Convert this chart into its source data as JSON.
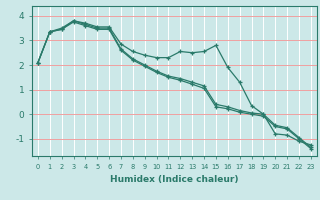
{
  "xlabel": "Humidex (Indice chaleur)",
  "ylabel": "",
  "bg_color": "#cce8e8",
  "grid_color_h": "#f0a0a0",
  "grid_color_v": "#ffffff",
  "line_color": "#2a7a6a",
  "xlim": [
    -0.5,
    23.5
  ],
  "ylim": [
    -1.7,
    4.4
  ],
  "yticks": [
    -1,
    0,
    1,
    2,
    3,
    4
  ],
  "xticks": [
    0,
    1,
    2,
    3,
    4,
    5,
    6,
    7,
    8,
    9,
    10,
    11,
    12,
    13,
    14,
    15,
    16,
    17,
    18,
    19,
    20,
    21,
    22,
    23
  ],
  "x": [
    0,
    1,
    2,
    3,
    4,
    5,
    6,
    7,
    8,
    9,
    10,
    11,
    12,
    13,
    14,
    15,
    16,
    17,
    18,
    19,
    20,
    21,
    22,
    23
  ],
  "line1": [
    2.1,
    3.35,
    3.5,
    3.8,
    3.7,
    3.55,
    3.55,
    2.85,
    2.55,
    2.4,
    2.3,
    2.3,
    2.55,
    2.5,
    2.55,
    2.8,
    1.9,
    1.3,
    0.35,
    0.0,
    -0.8,
    -0.85,
    -1.1,
    -1.25
  ],
  "line2": [
    2.1,
    3.35,
    3.45,
    3.8,
    3.65,
    3.5,
    3.5,
    2.65,
    2.25,
    2.0,
    1.75,
    1.55,
    1.45,
    1.3,
    1.15,
    0.4,
    0.3,
    0.15,
    0.05,
    0.0,
    -0.45,
    -0.55,
    -0.95,
    -1.35
  ],
  "line3": [
    2.1,
    3.35,
    3.45,
    3.75,
    3.6,
    3.45,
    3.45,
    2.6,
    2.2,
    1.95,
    1.7,
    1.5,
    1.38,
    1.22,
    1.05,
    0.3,
    0.22,
    0.08,
    0.0,
    -0.08,
    -0.5,
    -0.6,
    -1.0,
    -1.4
  ]
}
